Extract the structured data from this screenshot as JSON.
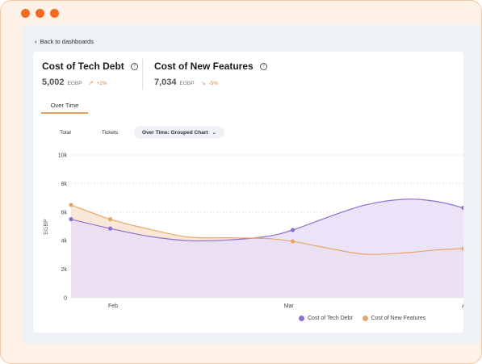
{
  "window": {
    "dot_color": "#f06a24"
  },
  "nav": {
    "back_label": "Back to dashboards"
  },
  "metrics": [
    {
      "title": "Cost of Tech Debt",
      "value": "5,002",
      "unit": "EGBP",
      "change": "+2%",
      "trend": "up"
    },
    {
      "title": "Cost of New Features",
      "value": "7,034",
      "unit": "EGBP",
      "change": "-5%",
      "trend": "down"
    }
  ],
  "tabs": {
    "active": "Over Time"
  },
  "subtabs": {
    "total": "Total",
    "tickets": "Tickets",
    "grouped": "Over Time: Grouped Chart"
  },
  "chart_data": {
    "type": "area",
    "ylabel": "EGBP",
    "y_ticks": [
      "10k",
      "8k",
      "6k",
      "4k",
      "2k",
      "0"
    ],
    "ylim": [
      0,
      10000
    ],
    "x_ticks": [
      "Feb",
      "Mar",
      "Ap"
    ],
    "grid": true,
    "legend_position": "bottom-right",
    "series": [
      {
        "name": "Cost of Tech Debt",
        "color": "#8f6fce",
        "fill": "#e7def6",
        "points": [
          {
            "x": 0.0,
            "y": 5500
          },
          {
            "x": 0.1,
            "y": 4850
          },
          {
            "x": 0.565,
            "y": 4750
          },
          {
            "x": 1.0,
            "y": 6300
          }
        ],
        "curve": [
          [
            0.0,
            5500
          ],
          [
            0.1,
            4850
          ],
          [
            0.2,
            4300
          ],
          [
            0.3,
            4000
          ],
          [
            0.4,
            4050
          ],
          [
            0.5,
            4300
          ],
          [
            0.565,
            4750
          ],
          [
            0.65,
            5600
          ],
          [
            0.75,
            6500
          ],
          [
            0.85,
            6900
          ],
          [
            0.93,
            6750
          ],
          [
            1.0,
            6300
          ]
        ]
      },
      {
        "name": "Cost of New Features",
        "color": "#e9a56a",
        "fill": "#f9e8d8",
        "points": [
          {
            "x": 0.0,
            "y": 6500
          },
          {
            "x": 0.1,
            "y": 5500
          },
          {
            "x": 0.565,
            "y": 3950
          },
          {
            "x": 1.0,
            "y": 3450
          }
        ],
        "curve": [
          [
            0.0,
            6500
          ],
          [
            0.1,
            5500
          ],
          [
            0.2,
            4800
          ],
          [
            0.3,
            4250
          ],
          [
            0.4,
            4200
          ],
          [
            0.5,
            4150
          ],
          [
            0.565,
            3950
          ],
          [
            0.65,
            3500
          ],
          [
            0.75,
            3050
          ],
          [
            0.85,
            3150
          ],
          [
            0.93,
            3350
          ],
          [
            1.0,
            3450
          ]
        ]
      }
    ]
  }
}
